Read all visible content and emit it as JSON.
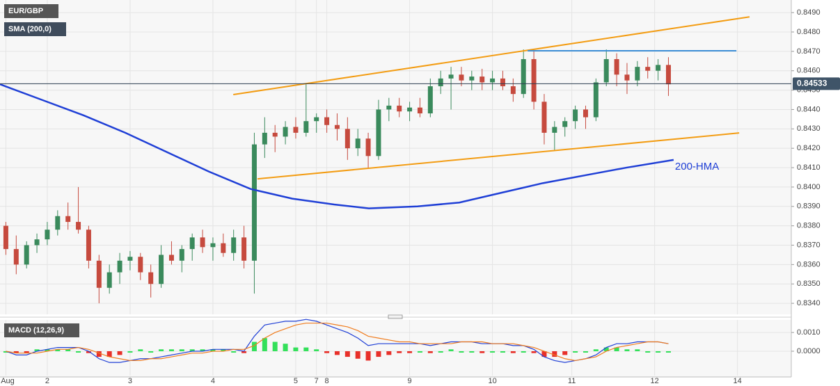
{
  "chart_data": [
    {
      "type": "candlestick",
      "x": [
        -12,
        -9,
        -6,
        -3,
        0,
        3,
        6,
        9,
        12,
        15,
        18,
        21,
        24,
        27,
        30,
        33,
        36,
        39,
        42,
        45,
        48,
        51,
        54,
        57,
        60,
        63,
        66,
        69,
        72,
        75,
        78,
        81,
        84,
        87,
        90,
        93,
        96,
        99,
        102,
        105,
        108,
        111,
        114,
        117,
        120,
        123,
        126,
        129,
        132,
        135,
        138,
        141,
        144,
        147,
        150,
        153,
        156,
        159,
        162,
        165,
        168,
        171,
        174,
        177,
        180
      ],
      "open": [
        0.838,
        0.8368,
        0.836,
        0.837,
        0.8373,
        0.8378,
        0.8385,
        0.8382,
        0.8378,
        0.8362,
        0.8348,
        0.8356,
        0.8362,
        0.8364,
        0.8356,
        0.835,
        0.8365,
        0.8362,
        0.8368,
        0.8374,
        0.8369,
        0.8371,
        0.8366,
        0.8374,
        0.8362,
        0.8422,
        0.8428,
        0.8426,
        0.8431,
        0.8428,
        0.8434,
        0.8436,
        0.8432,
        0.843,
        0.842,
        0.8425,
        0.8416,
        0.844,
        0.8442,
        0.8439,
        0.8441,
        0.8438,
        0.8452,
        0.8456,
        0.8458,
        0.8455,
        0.8457,
        0.8454,
        0.8456,
        0.8452,
        0.8448,
        0.8466,
        0.8444,
        0.8428,
        0.8431,
        0.8434,
        0.844,
        0.8436,
        0.8454,
        0.8466,
        0.8458,
        0.8455,
        0.8462,
        0.846,
        0.8463
      ],
      "high": [
        0.8382,
        0.8375,
        0.8372,
        0.8376,
        0.8382,
        0.8388,
        0.8392,
        0.84,
        0.838,
        0.8365,
        0.836,
        0.8366,
        0.8367,
        0.8366,
        0.836,
        0.837,
        0.8372,
        0.837,
        0.8376,
        0.8378,
        0.8374,
        0.8376,
        0.8378,
        0.838,
        0.8428,
        0.8436,
        0.8432,
        0.8434,
        0.8436,
        0.8453,
        0.8438,
        0.844,
        0.8438,
        0.8436,
        0.843,
        0.8428,
        0.8445,
        0.8446,
        0.8446,
        0.8444,
        0.8446,
        0.8456,
        0.846,
        0.8462,
        0.8462,
        0.846,
        0.8461,
        0.846,
        0.846,
        0.8456,
        0.8471,
        0.847,
        0.8448,
        0.8434,
        0.8436,
        0.8442,
        0.8442,
        0.8456,
        0.8471,
        0.8469,
        0.8464,
        0.8465,
        0.8467,
        0.8466,
        0.8467
      ],
      "low": [
        0.8365,
        0.8355,
        0.8358,
        0.8366,
        0.837,
        0.8375,
        0.8378,
        0.8376,
        0.8358,
        0.834,
        0.8345,
        0.835,
        0.8357,
        0.8352,
        0.8343,
        0.8348,
        0.836,
        0.8356,
        0.8362,
        0.8366,
        0.8362,
        0.8364,
        0.8362,
        0.8358,
        0.8345,
        0.8415,
        0.8418,
        0.8422,
        0.8425,
        0.8426,
        0.8428,
        0.8428,
        0.8424,
        0.8414,
        0.8416,
        0.841,
        0.8414,
        0.8434,
        0.8436,
        0.8434,
        0.8436,
        0.8436,
        0.8448,
        0.844,
        0.8452,
        0.845,
        0.845,
        0.845,
        0.845,
        0.8444,
        0.8446,
        0.844,
        0.8422,
        0.8419,
        0.8426,
        0.843,
        0.843,
        0.8434,
        0.8452,
        0.8452,
        0.8448,
        0.8452,
        0.8456,
        0.8455,
        0.8447
      ],
      "close": [
        0.8368,
        0.836,
        0.837,
        0.8373,
        0.8378,
        0.8385,
        0.8382,
        0.8378,
        0.8362,
        0.8348,
        0.8356,
        0.8362,
        0.8364,
        0.8356,
        0.835,
        0.8365,
        0.8362,
        0.8368,
        0.8374,
        0.8369,
        0.8371,
        0.8366,
        0.8374,
        0.8362,
        0.8422,
        0.8428,
        0.8426,
        0.8431,
        0.8428,
        0.8434,
        0.8436,
        0.8432,
        0.843,
        0.842,
        0.8425,
        0.8416,
        0.844,
        0.8442,
        0.8439,
        0.8441,
        0.8438,
        0.8452,
        0.8456,
        0.8458,
        0.8455,
        0.8457,
        0.8454,
        0.8456,
        0.8452,
        0.8448,
        0.8466,
        0.8444,
        0.8428,
        0.8431,
        0.8434,
        0.844,
        0.8436,
        0.8454,
        0.8466,
        0.8458,
        0.8455,
        0.8462,
        0.846,
        0.8463,
        0.8453
      ],
      "up_color": "#3a8a5c",
      "down_color": "#c64a3e",
      "symbol": "EUR/GBP",
      "series": [
        {
          "name": "SMA (200,0)",
          "color": "#1f3fd6",
          "x": [
            -13.7,
            -1.6,
            10.5,
            22.6,
            34.7,
            46.8,
            58.9,
            71.0,
            83.1,
            93.2,
            107.3,
            119.4,
            131.5,
            143.6,
            155.7,
            167.8,
            181.5
          ],
          "values": [
            0.8453,
            0.8445,
            0.8437,
            0.8428,
            0.8418,
            0.8408,
            0.8399,
            0.8394,
            0.8391,
            0.8389,
            0.839,
            0.8392,
            0.8397,
            0.8402,
            0.8406,
            0.841,
            0.8414
          ]
        }
      ],
      "annotation": "200-HMA",
      "trendlines": [
        {
          "x": [
            53.9,
            203.5
          ],
          "y": [
            0.84477,
            0.84878
          ],
          "color": "#f39c12"
        },
        {
          "x": [
            60.9,
            200.5
          ],
          "y": [
            0.84042,
            0.84279
          ],
          "color": "#f39c12"
        },
        {
          "x": [
            139.2,
            199.7
          ],
          "y": [
            0.84703,
            0.84703
          ],
          "color": "#3d8fd6"
        }
      ],
      "last": 0.84533,
      "xlim": [
        -13.7,
        215.6
      ],
      "ylim": [
        0.83343,
        0.84965
      ],
      "yticks": [
        {
          "value": 0.834,
          "label": "0.8340"
        },
        {
          "value": 0.835,
          "label": "0.8350"
        },
        {
          "value": 0.836,
          "label": "0.8360"
        },
        {
          "value": 0.837,
          "label": "0.8370"
        },
        {
          "value": 0.838,
          "label": "0.8380"
        },
        {
          "value": 0.839,
          "label": "0.8390"
        },
        {
          "value": 0.84,
          "label": "0.8400"
        },
        {
          "value": 0.841,
          "label": "0.8410"
        },
        {
          "value": 0.842,
          "label": "0.8420"
        },
        {
          "value": 0.843,
          "label": "0.8430"
        },
        {
          "value": 0.844,
          "label": "0.8440"
        },
        {
          "value": 0.845,
          "label": "0.8450"
        },
        {
          "value": 0.846,
          "label": "0.8460"
        },
        {
          "value": 0.847,
          "label": "0.8470"
        },
        {
          "value": 0.848,
          "label": "0.8480"
        },
        {
          "value": 0.849,
          "label": "0.8490"
        }
      ],
      "grid": true
    },
    {
      "type": "macd",
      "title": "MACD (12,26,9)",
      "x": [
        -12,
        -9,
        -6,
        -3,
        0,
        3,
        6,
        9,
        12,
        15,
        18,
        21,
        24,
        27,
        30,
        33,
        36,
        39,
        42,
        45,
        48,
        51,
        54,
        57,
        60,
        63,
        66,
        69,
        72,
        75,
        78,
        81,
        84,
        87,
        90,
        93,
        96,
        99,
        102,
        105,
        108,
        111,
        114,
        117,
        120,
        123,
        126,
        129,
        132,
        135,
        138,
        141,
        144,
        147,
        150,
        153,
        156,
        159,
        162,
        165,
        168,
        171,
        174,
        177,
        180
      ],
      "macd": [
        0,
        -0.0002,
        -0.0002,
        0,
        0.0001,
        0.0002,
        0.0002,
        0.0002,
        0,
        -0.0004,
        -0.0006,
        -0.0006,
        -0.0005,
        -0.0004,
        -0.0004,
        -0.0003,
        -0.0002,
        -0.0001,
        0,
        0,
        0.0001,
        0.0001,
        0.0001,
        0,
        0.0008,
        0.0014,
        0.0015,
        0.0016,
        0.0016,
        0.0017,
        0.0016,
        0.0014,
        0.0012,
        0.001,
        0.0007,
        0.0003,
        0.0004,
        0.0004,
        0.0004,
        0.0004,
        0.0004,
        0.0003,
        0.0004,
        0.0005,
        0.0005,
        0.0005,
        0.0004,
        0.0004,
        0.0004,
        0.0003,
        0.0003,
        0.0001,
        -0.0003,
        -0.0005,
        -0.0006,
        -0.0005,
        -0.0004,
        -0.0002,
        0.0002,
        0.0004,
        0.0004,
        0.0005,
        0.0005,
        0.0005,
        0.0004
      ],
      "signal": [
        0,
        -0.0001,
        -0.0001,
        -0.0001,
        0,
        0.0001,
        0.0001,
        0.0002,
        0.0001,
        -0.0001,
        -0.0003,
        -0.0004,
        -0.0005,
        -0.0005,
        -0.0004,
        -0.0004,
        -0.0003,
        -0.0002,
        -0.0001,
        -0.0001,
        0,
        0,
        0.0001,
        0.0001,
        0.0003,
        0.0007,
        0.001,
        0.0012,
        0.0014,
        0.0015,
        0.0015,
        0.0015,
        0.0014,
        0.0013,
        0.0011,
        0.0008,
        0.0007,
        0.0006,
        0.0005,
        0.0005,
        0.0004,
        0.0004,
        0.0004,
        0.0004,
        0.0005,
        0.0005,
        0.0005,
        0.0004,
        0.0004,
        0.0004,
        0.0003,
        0.0002,
        0,
        -0.0002,
        -0.0004,
        -0.0005,
        -0.0004,
        -0.0003,
        0,
        0.0002,
        0.0003,
        0.0004,
        0.0005,
        0.0005,
        0.0004
      ],
      "hist": [
        0,
        -0.0001,
        -0.0001,
        0.0001,
        0.0001,
        0.0001,
        0.0001,
        0,
        -0.0001,
        -0.0003,
        -0.0003,
        -0.0002,
        0,
        0.0001,
        0,
        0.0001,
        0.0001,
        0.0001,
        0.0001,
        0.0001,
        0.0001,
        0.0001,
        0,
        -0.0001,
        0.0005,
        0.0007,
        0.0005,
        0.0004,
        0.0002,
        0.0002,
        0.0001,
        -0.0001,
        -0.0002,
        -0.0003,
        -0.0004,
        -0.0005,
        -0.0003,
        -0.0002,
        -0.0001,
        -0.0001,
        0,
        -0.0001,
        0,
        0.0001,
        0,
        0,
        -0.0001,
        0,
        0,
        -0.0001,
        0,
        -0.0001,
        -0.0003,
        -0.0003,
        -0.0002,
        0,
        0,
        0.0001,
        0.0002,
        0.0002,
        0.0001,
        0.0001,
        0,
        0,
        0
      ],
      "macd_color": "#1f3fd6",
      "signal_color": "#f07c1e",
      "hist_up_color": "#33e05a",
      "hist_down_color": "#e8302a",
      "xlim": [
        -13.7,
        215.6
      ],
      "ylim": [
        -0.0013,
        0.00167
      ],
      "yticks": [
        {
          "value": 0,
          "label": "0.0000"
        },
        {
          "value": 0.001,
          "label": "0.0010"
        }
      ],
      "xticks": [
        {
          "value": -12,
          "label": "Aug"
        },
        {
          "value": 0,
          "label": "2"
        },
        {
          "value": 24,
          "label": "3"
        },
        {
          "value": 48,
          "label": "4"
        },
        {
          "value": 72,
          "label": "5"
        },
        {
          "value": 78,
          "label": "7"
        },
        {
          "value": 81,
          "label": "8"
        },
        {
          "value": 105,
          "label": "9"
        },
        {
          "value": 129,
          "label": "10"
        },
        {
          "value": 152,
          "label": "11"
        },
        {
          "value": 176,
          "label": "12"
        },
        {
          "value": 200,
          "label": "14"
        }
      ],
      "grid": true
    }
  ]
}
